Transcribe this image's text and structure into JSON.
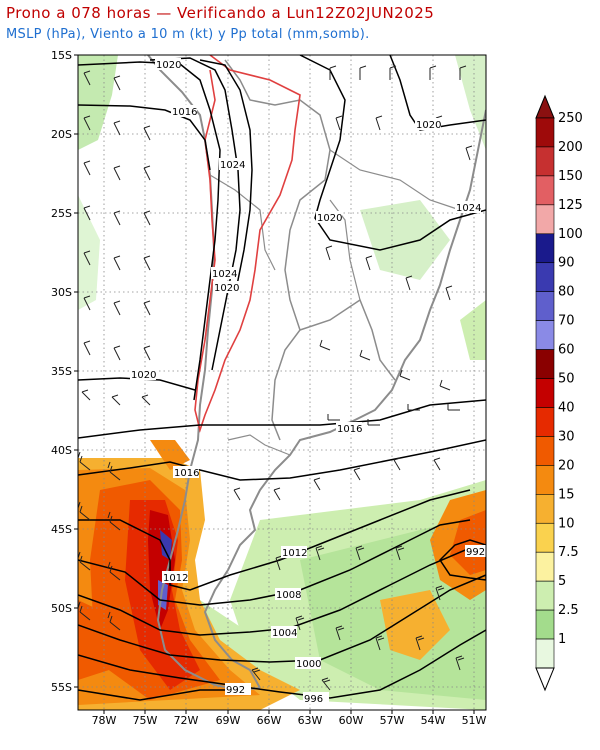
{
  "header": {
    "title": "Prono a 078 horas — Verificando a Lun12Z02JUN2025",
    "subtitle": "MSLP (hPa), Viento a 10 m (kt) y Pp total (mm,somb)."
  },
  "axes": {
    "lat_labels": [
      "15S",
      "20S",
      "25S",
      "30S",
      "35S",
      "40S",
      "45S",
      "50S",
      "55S"
    ],
    "lon_labels": [
      "78W",
      "75W",
      "72W",
      "69W",
      "66W",
      "63W",
      "60W",
      "57W",
      "54W",
      "51W"
    ]
  },
  "isobar_labels": [
    "1020",
    "1016",
    "1024",
    "1020",
    "1024",
    "1020",
    "1024",
    "1020",
    "1020",
    "1016",
    "1016",
    "1012",
    "1008",
    "1004",
    "1000",
    "996",
    "992",
    "992",
    "1012"
  ],
  "colorbar": {
    "labels": [
      "250",
      "200",
      "150",
      "125",
      "100",
      "90",
      "80",
      "70",
      "60",
      "50",
      "40",
      "30",
      "20",
      "15",
      "10",
      "7.5",
      "5",
      "2.5",
      "1"
    ],
    "colors": [
      "#9e0a0a",
      "#c63030",
      "#e25f63",
      "#f2a8a8",
      "#1a1a8c",
      "#3a3ab0",
      "#5f5fcc",
      "#8a8ae6",
      "#8a0000",
      "#c40000",
      "#e62a00",
      "#f05a00",
      "#f48a10",
      "#f6b030",
      "#fad24e",
      "#fcf2a0",
      "#cdeeb0",
      "#a3dc8c",
      "#e8f8e0"
    ],
    "arrow_top_color": "#8a1010",
    "arrow_bottom_color": "#ffffff"
  }
}
